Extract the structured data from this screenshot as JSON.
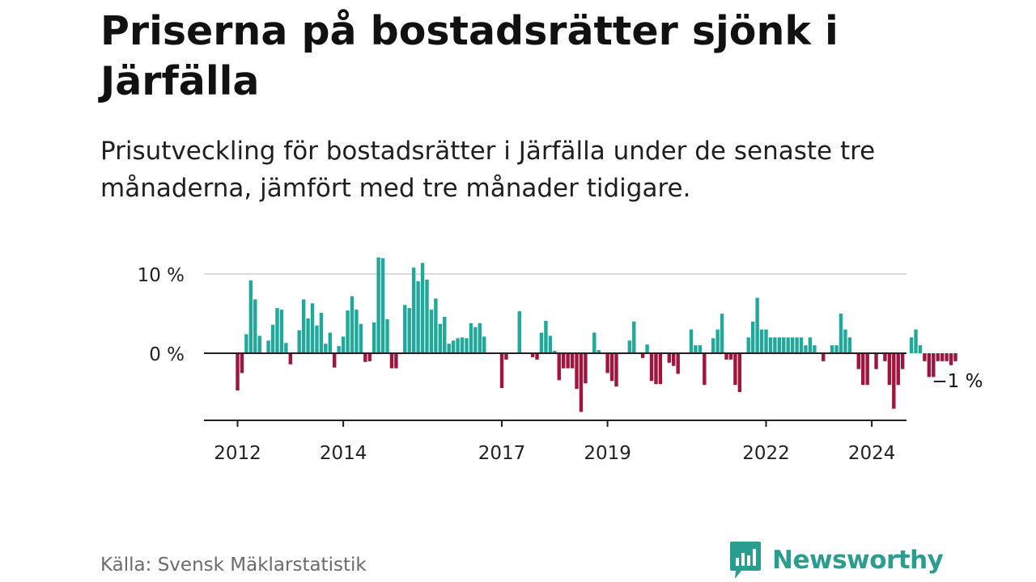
{
  "title": "Priserna på bostadsrätter sjönk i Järfälla",
  "subtitle": "Prisutveckling för bostadsrätter i Järfälla under de senaste tre månaderna, jämfört med tre månader tidigare.",
  "source": "Källa: Svensk Mäklarstatistik",
  "brand": {
    "name": "Newsworthy",
    "icon": "newsworthy-logo-icon"
  },
  "colors": {
    "positive": "#1fa99a",
    "negative": "#a0153e",
    "gridline": "#dcdcdc",
    "axis": "#222222",
    "brand": "#2a9d8f"
  },
  "chart_data": {
    "type": "bar",
    "title": "Priserna på bostadsrätter sjönk i Järfälla",
    "xlabel": "",
    "ylabel": "",
    "start": "2012-01",
    "frequency": "monthly",
    "ylim": [
      -8.5,
      12.5
    ],
    "y_ticks": [
      {
        "value": 0,
        "label": "0 %"
      },
      {
        "value": 10,
        "label": "10 %"
      }
    ],
    "x_ticks": [
      {
        "year": 2012,
        "label": "2012"
      },
      {
        "year": 2014,
        "label": "2014"
      },
      {
        "year": 2017,
        "label": "2017"
      },
      {
        "year": 2019,
        "label": "2019"
      },
      {
        "year": 2022,
        "label": "2022"
      },
      {
        "year": 2024,
        "label": "2024"
      }
    ],
    "last_value_label": "−1 %",
    "unit": "%",
    "values": [
      -4.7,
      -2.5,
      2.4,
      9.2,
      6.8,
      2.2,
      0.0,
      1.6,
      3.6,
      5.7,
      5.5,
      1.3,
      -1.4,
      0.0,
      2.9,
      6.8,
      4.4,
      6.3,
      3.5,
      5.1,
      1.2,
      2.6,
      -1.8,
      0.9,
      2.1,
      5.4,
      7.2,
      5.5,
      3.7,
      -1.1,
      -1.0,
      3.9,
      12.1,
      12.0,
      4.3,
      -1.9,
      -1.9,
      0.0,
      6.1,
      5.7,
      10.8,
      9.1,
      11.4,
      9.3,
      5.5,
      6.9,
      3.7,
      4.6,
      1.2,
      1.6,
      1.9,
      2.0,
      1.9,
      3.8,
      3.3,
      3.8,
      2.1,
      0.0,
      0.0,
      0.0,
      -4.4,
      -0.8,
      0.0,
      0.0,
      5.3,
      0.0,
      0.0,
      -0.5,
      -0.8,
      2.6,
      4.1,
      2.2,
      0.3,
      -3.4,
      -1.9,
      -1.9,
      -1.9,
      -4.5,
      -7.4,
      -3.8,
      0.0,
      2.6,
      0.4,
      0.0,
      -2.5,
      -3.5,
      -4.2,
      0.0,
      0.0,
      1.6,
      4.0,
      0.0,
      -0.6,
      1.1,
      -3.5,
      -3.9,
      -3.9,
      0.0,
      -1.2,
      -1.6,
      -2.6,
      0.0,
      0.0,
      3.0,
      1.0,
      1.0,
      -4.0,
      0.0,
      1.9,
      3.0,
      5.0,
      -0.8,
      -0.8,
      -4.0,
      -4.9,
      0.0,
      2.0,
      4.0,
      7.0,
      3.0,
      3.0,
      2.0,
      2.0,
      2.0,
      2.0,
      2.0,
      2.0,
      2.0,
      2.0,
      1.0,
      2.0,
      1.0,
      0.0,
      -1.0,
      0.0,
      1.0,
      1.0,
      5.0,
      3.0,
      2.0,
      0.0,
      -2.0,
      -4.0,
      -4.0,
      0.0,
      -2.0,
      0.0,
      -1.0,
      -4.0,
      -7.0,
      -4.0,
      -2.0,
      0.0,
      2.0,
      3.0,
      1.0,
      -1.0,
      -3.0,
      -3.0,
      -1.0,
      -1.0,
      -1.0,
      -1.5,
      -1.0
    ]
  }
}
